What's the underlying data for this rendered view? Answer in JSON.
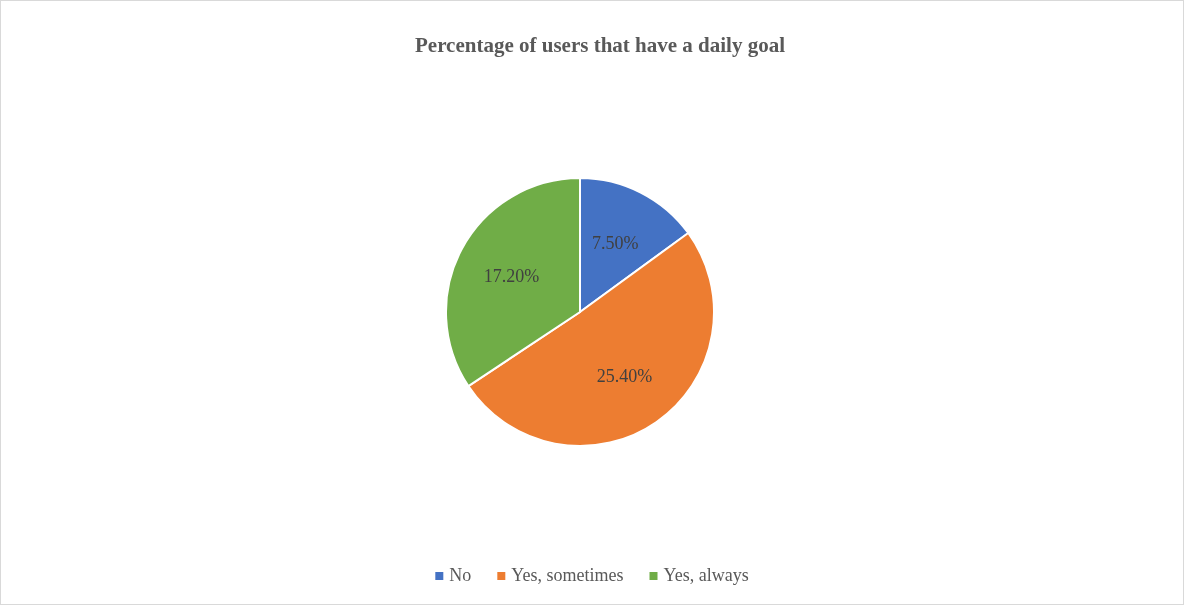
{
  "chart_data": {
    "type": "pie",
    "title": "Percentage of users that have a daily goal",
    "categories": [
      "No",
      "Yes, sometimes",
      "Yes, always"
    ],
    "values": [
      7.5,
      25.4,
      17.2
    ],
    "colors": [
      "#4472c4",
      "#ed7d31",
      "#70ad47"
    ],
    "value_labels": [
      "7.50%",
      "25.40%",
      "17.20%"
    ],
    "legend": "bottom"
  }
}
